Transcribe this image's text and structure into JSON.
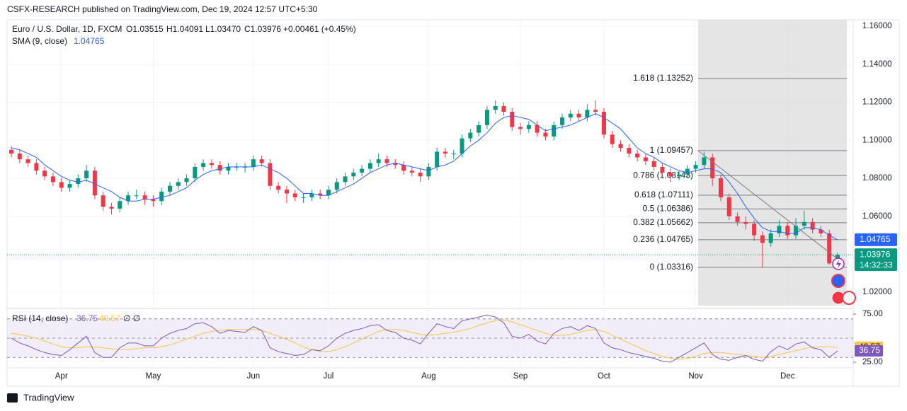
{
  "chart_data": {
    "type": "candlestick",
    "published": "CSFX-RESEARCH published on TradingView.com, Dec 19, 2024 12:57 UTC+5:30",
    "title": "Euro / U.S. Dollar, 1D, FXCM",
    "ohlc_text": [
      "O1.03515",
      "H1.04091",
      "L1.03470",
      "C1.03976"
    ],
    "change_text": "+0.00461 (+0.45%)",
    "countdown": "14:32:33",
    "brand": "TradingView",
    "up_color": "#089981",
    "down_color": "#f23645",
    "categories": [
      null,
      null,
      null,
      null,
      null,
      null,
      "Apr",
      null,
      null,
      null,
      null,
      null,
      null,
      null,
      null,
      null,
      null,
      "May",
      null,
      null,
      null,
      null,
      null,
      null,
      null,
      null,
      null,
      null,
      null,
      "Jun",
      null,
      null,
      null,
      null,
      null,
      null,
      null,
      null,
      "Jul",
      null,
      null,
      null,
      null,
      null,
      null,
      null,
      null,
      null,
      null,
      null,
      "Aug",
      null,
      null,
      null,
      null,
      null,
      null,
      null,
      null,
      null,
      null,
      "Sep",
      null,
      null,
      null,
      null,
      null,
      null,
      null,
      null,
      null,
      "Oct",
      null,
      null,
      null,
      null,
      null,
      null,
      null,
      null,
      null,
      null,
      "Nov",
      null,
      null,
      null,
      null,
      null,
      null,
      null,
      null,
      null,
      null,
      "Dec",
      null,
      null,
      null,
      null,
      null,
      null
    ],
    "ohlc": [
      [
        1.095,
        1.097,
        1.091,
        1.093
      ],
      [
        1.093,
        1.095,
        1.088,
        1.09
      ],
      [
        1.09,
        1.092,
        1.086,
        1.088
      ],
      [
        1.088,
        1.09,
        1.082,
        1.084
      ],
      [
        1.084,
        1.086,
        1.079,
        1.081
      ],
      [
        1.081,
        1.083,
        1.076,
        1.078
      ],
      [
        1.078,
        1.08,
        1.073,
        1.075
      ],
      [
        1.075,
        1.079,
        1.073,
        1.077
      ],
      [
        1.077,
        1.082,
        1.075,
        1.08
      ],
      [
        1.08,
        1.087,
        1.078,
        1.084
      ],
      [
        1.084,
        1.086,
        1.069,
        1.071
      ],
      [
        1.071,
        1.073,
        1.063,
        1.065
      ],
      [
        1.065,
        1.067,
        1.061,
        1.064
      ],
      [
        1.064,
        1.07,
        1.062,
        1.068
      ],
      [
        1.068,
        1.073,
        1.066,
        1.071
      ],
      [
        1.071,
        1.074,
        1.069,
        1.071
      ],
      [
        1.071,
        1.073,
        1.066,
        1.069
      ],
      [
        1.069,
        1.071,
        1.065,
        1.068
      ],
      [
        1.068,
        1.075,
        1.066,
        1.073
      ],
      [
        1.073,
        1.078,
        1.071,
        1.076
      ],
      [
        1.076,
        1.08,
        1.074,
        1.078
      ],
      [
        1.078,
        1.082,
        1.076,
        1.08
      ],
      [
        1.08,
        1.088,
        1.078,
        1.086
      ],
      [
        1.086,
        1.09,
        1.084,
        1.088
      ],
      [
        1.088,
        1.09,
        1.085,
        1.087
      ],
      [
        1.087,
        1.089,
        1.082,
        1.084
      ],
      [
        1.084,
        1.088,
        1.082,
        1.086
      ],
      [
        1.086,
        1.088,
        1.084,
        1.086
      ],
      [
        1.086,
        1.088,
        1.083,
        1.086
      ],
      [
        1.086,
        1.092,
        1.084,
        1.09
      ],
      [
        1.09,
        1.092,
        1.086,
        1.088
      ],
      [
        1.088,
        1.09,
        1.074,
        1.076
      ],
      [
        1.076,
        1.078,
        1.072,
        1.074
      ],
      [
        1.074,
        1.076,
        1.067,
        1.072
      ],
      [
        1.072,
        1.074,
        1.068,
        1.07
      ],
      [
        1.07,
        1.072,
        1.067,
        1.07
      ],
      [
        1.07,
        1.074,
        1.068,
        1.072
      ],
      [
        1.072,
        1.074,
        1.069,
        1.071
      ],
      [
        1.071,
        1.076,
        1.069,
        1.074
      ],
      [
        1.074,
        1.08,
        1.072,
        1.078
      ],
      [
        1.078,
        1.083,
        1.076,
        1.081
      ],
      [
        1.081,
        1.085,
        1.079,
        1.083
      ],
      [
        1.083,
        1.087,
        1.081,
        1.085
      ],
      [
        1.085,
        1.09,
        1.083,
        1.088
      ],
      [
        1.088,
        1.093,
        1.086,
        1.09
      ],
      [
        1.09,
        1.092,
        1.086,
        1.088
      ],
      [
        1.088,
        1.09,
        1.085,
        1.087
      ],
      [
        1.087,
        1.089,
        1.082,
        1.084
      ],
      [
        1.084,
        1.086,
        1.081,
        1.083
      ],
      [
        1.083,
        1.085,
        1.078,
        1.081
      ],
      [
        1.081,
        1.088,
        1.079,
        1.086
      ],
      [
        1.086,
        1.096,
        1.084,
        1.094
      ],
      [
        1.094,
        1.096,
        1.091,
        1.093
      ],
      [
        1.093,
        1.095,
        1.09,
        1.093
      ],
      [
        1.093,
        1.103,
        1.091,
        1.101
      ],
      [
        1.101,
        1.106,
        1.099,
        1.104
      ],
      [
        1.104,
        1.11,
        1.102,
        1.108
      ],
      [
        1.108,
        1.118,
        1.106,
        1.116
      ],
      [
        1.116,
        1.121,
        1.114,
        1.118
      ],
      [
        1.118,
        1.12,
        1.113,
        1.115
      ],
      [
        1.115,
        1.117,
        1.105,
        1.107
      ],
      [
        1.107,
        1.109,
        1.103,
        1.106
      ],
      [
        1.106,
        1.11,
        1.104,
        1.108
      ],
      [
        1.108,
        1.11,
        1.102,
        1.104
      ],
      [
        1.104,
        1.106,
        1.1,
        1.102
      ],
      [
        1.102,
        1.11,
        1.1,
        1.108
      ],
      [
        1.108,
        1.114,
        1.106,
        1.112
      ],
      [
        1.112,
        1.116,
        1.11,
        1.114
      ],
      [
        1.114,
        1.116,
        1.11,
        1.112
      ],
      [
        1.112,
        1.119,
        1.11,
        1.116
      ],
      [
        1.116,
        1.121,
        1.113,
        1.115
      ],
      [
        1.115,
        1.117,
        1.101,
        1.103
      ],
      [
        1.103,
        1.105,
        1.096,
        1.098
      ],
      [
        1.098,
        1.1,
        1.094,
        1.096
      ],
      [
        1.096,
        1.098,
        1.091,
        1.093
      ],
      [
        1.093,
        1.095,
        1.089,
        1.091
      ],
      [
        1.091,
        1.093,
        1.087,
        1.089
      ],
      [
        1.089,
        1.091,
        1.084,
        1.086
      ],
      [
        1.086,
        1.088,
        1.081,
        1.083
      ],
      [
        1.083,
        1.085,
        1.078,
        1.081
      ],
      [
        1.081,
        1.084,
        1.079,
        1.082
      ],
      [
        1.082,
        1.087,
        1.08,
        1.085
      ],
      [
        1.085,
        1.089,
        1.083,
        1.087
      ],
      [
        1.087,
        1.094,
        1.085,
        1.091
      ],
      [
        1.091,
        1.093,
        1.076,
        1.08
      ],
      [
        1.08,
        1.082,
        1.068,
        1.07
      ],
      [
        1.07,
        1.072,
        1.058,
        1.06
      ],
      [
        1.06,
        1.062,
        1.055,
        1.057
      ],
      [
        1.057,
        1.06,
        1.053,
        1.056
      ],
      [
        1.056,
        1.058,
        1.047,
        1.05
      ],
      [
        1.05,
        1.052,
        1.0332,
        1.046
      ],
      [
        1.046,
        1.053,
        1.044,
        1.051
      ],
      [
        1.051,
        1.058,
        1.049,
        1.055
      ],
      [
        1.055,
        1.057,
        1.048,
        1.05
      ],
      [
        1.05,
        1.059,
        1.048,
        1.055
      ],
      [
        1.055,
        1.063,
        1.053,
        1.057
      ],
      [
        1.057,
        1.059,
        1.051,
        1.053
      ],
      [
        1.053,
        1.055,
        1.049,
        1.051
      ],
      [
        1.051,
        1.053,
        1.0345,
        1.0352
      ],
      [
        1.03515,
        1.04091,
        1.0347,
        1.03976
      ]
    ],
    "ylim": [
      1.013,
      1.1634
    ],
    "yticks": [
      {
        "value": 1.16,
        "label": "1.16000"
      },
      {
        "value": 1.14,
        "label": "1.14000"
      },
      {
        "value": 1.12,
        "label": "1.12000"
      },
      {
        "value": 1.1,
        "label": "1.10000"
      },
      {
        "value": 1.08,
        "label": "1.08000"
      },
      {
        "value": 1.06,
        "label": "1.06000"
      },
      {
        "value": 1.02,
        "label": "1.02000"
      }
    ],
    "sma": {
      "name": "SMA (9, close)",
      "color": "#2962ff",
      "values": [
        1.096,
        1.095,
        1.093,
        1.091,
        1.087,
        1.084,
        1.081,
        1.079,
        1.078,
        1.079,
        1.077,
        1.075,
        1.073,
        1.07,
        1.068,
        1.068,
        1.069,
        1.069,
        1.07,
        1.071,
        1.073,
        1.075,
        1.079,
        1.082,
        1.084,
        1.085,
        1.086,
        1.086,
        1.086,
        1.086,
        1.087,
        1.085,
        1.083,
        1.08,
        1.076,
        1.072,
        1.072,
        1.071,
        1.071,
        1.073,
        1.075,
        1.077,
        1.08,
        1.083,
        1.085,
        1.087,
        1.088,
        1.087,
        1.086,
        1.085,
        1.084,
        1.086,
        1.087,
        1.089,
        1.093,
        1.097,
        1.1,
        1.104,
        1.109,
        1.112,
        1.113,
        1.112,
        1.111,
        1.108,
        1.105,
        1.106,
        1.107,
        1.108,
        1.11,
        1.112,
        1.114,
        1.112,
        1.109,
        1.106,
        1.101,
        1.096,
        1.093,
        1.091,
        1.088,
        1.086,
        1.084,
        1.083,
        1.084,
        1.085,
        1.085,
        1.083,
        1.078,
        1.072,
        1.065,
        1.059,
        1.054,
        1.052,
        1.052,
        1.051,
        1.051,
        1.054,
        1.054,
        1.053,
        1.05,
        1.04765
      ]
    },
    "fib_levels": [
      {
        "label": "1.618 (1.13252)",
        "value": 1.13252
      },
      {
        "label": "1 (1.09457)",
        "value": 1.09457
      },
      {
        "label": "0.786 (1.08143)",
        "value": 1.08143
      },
      {
        "label": "0.618 (1.07111)",
        "value": 1.07111
      },
      {
        "label": "0.5 (1.06386)",
        "value": 1.06386
      },
      {
        "label": "0.382 (1.05662)",
        "value": 1.05662
      },
      {
        "label": "0.236 (1.04765)",
        "value": 1.04765
      },
      {
        "label": "0 (1.03316)",
        "value": 1.03316
      }
    ],
    "rsi": {
      "name": "RSI (14, close)",
      "extra": "∅  ∅",
      "color": "#7e57c2",
      "ma_color": "#f7c548",
      "ylim": [
        20.6,
        80.9
      ],
      "yticks": [
        {
          "value": 75,
          "label": "75.00"
        },
        {
          "value": 25,
          "label": "25.00"
        }
      ],
      "levels": [
        70,
        50,
        30
      ],
      "values": [
        50,
        45,
        42,
        38,
        35,
        33,
        32,
        38,
        45,
        52,
        35,
        30,
        30,
        40,
        45,
        45,
        42,
        42,
        50,
        55,
        58,
        60,
        65,
        66,
        62,
        55,
        58,
        57,
        56,
        62,
        58,
        40,
        36,
        34,
        32,
        33,
        38,
        37,
        42,
        50,
        55,
        58,
        60,
        63,
        64,
        58,
        56,
        50,
        48,
        44,
        55,
        65,
        62,
        60,
        68,
        70,
        72,
        74,
        72,
        66,
        52,
        50,
        54,
        47,
        44,
        55,
        60,
        62,
        58,
        63,
        60,
        45,
        40,
        38,
        35,
        33,
        31,
        29,
        26,
        25,
        30,
        35,
        40,
        45,
        33,
        28,
        27,
        30,
        32,
        28,
        26,
        36,
        42,
        38,
        44,
        46,
        40,
        38,
        30,
        36.75
      ],
      "ma_values": [
        55,
        54,
        52,
        50,
        47,
        44,
        41,
        40,
        40,
        41,
        41,
        40,
        39,
        38,
        38,
        39,
        40,
        40,
        41,
        43,
        46,
        49,
        52,
        55,
        57,
        58,
        59,
        59,
        59,
        59,
        58,
        55,
        52,
        49,
        45,
        41,
        38,
        36,
        36,
        38,
        41,
        45,
        49,
        53,
        57,
        59,
        59,
        58,
        56,
        54,
        53,
        54,
        55,
        56,
        58,
        60,
        63,
        66,
        68,
        69,
        67,
        64,
        61,
        58,
        55,
        53,
        53,
        54,
        56,
        58,
        59,
        57,
        53,
        49,
        45,
        41,
        37,
        34,
        31,
        29,
        28,
        29,
        31,
        34,
        35,
        35,
        34,
        33,
        32,
        31,
        30,
        31,
        33,
        35,
        37,
        39,
        41,
        41,
        41,
        40.57
      ]
    }
  }
}
